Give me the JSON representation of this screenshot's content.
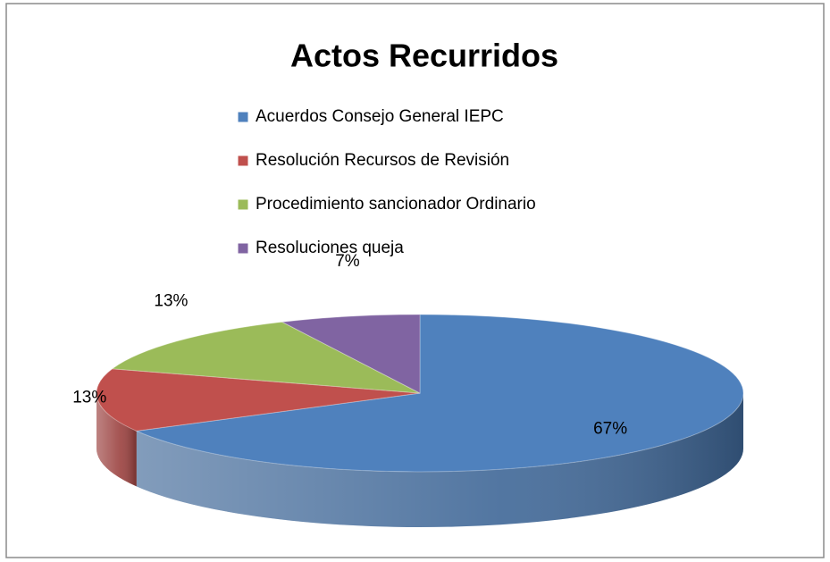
{
  "chart_data": {
    "type": "pie",
    "title": "Actos Recurridos",
    "categories": [
      "Acuerdos Consejo General IEPC",
      "Resolución Recursos de Revisión",
      "Procedimiento sancionador Ordinario",
      "Resoluciones queja"
    ],
    "values": [
      67,
      13,
      13,
      7
    ],
    "value_labels": [
      "67%",
      "13%",
      "13%",
      "7%"
    ],
    "colors": [
      "#4f81bd",
      "#c0504d",
      "#9bbb59",
      "#8064a2"
    ],
    "legend": "top"
  }
}
